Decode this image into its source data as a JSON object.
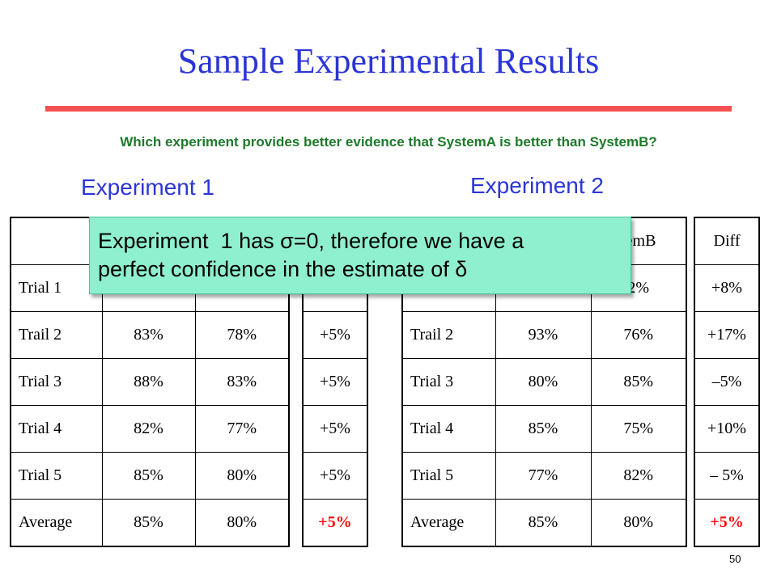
{
  "title": "Sample Experimental Results",
  "question": "Which experiment provides better evidence that SystemA is better than SystemB?",
  "experiment1": {
    "heading": "Experiment 1",
    "rows": [
      {
        "label": "Trial 1",
        "a": "",
        "b": ""
      },
      {
        "label": "Trail 2",
        "a": "83%",
        "b": "78%"
      },
      {
        "label": "Trial 3",
        "a": "88%",
        "b": "83%"
      },
      {
        "label": "Trial 4",
        "a": "82%",
        "b": "77%"
      },
      {
        "label": "Trial 5",
        "a": "85%",
        "b": "80%"
      },
      {
        "label": "Average",
        "a": "85%",
        "b": "80%"
      }
    ],
    "diff": [
      "+5%",
      "+5%",
      "+5%",
      "+5%",
      "+5%"
    ]
  },
  "experiment2": {
    "heading": "Experiment 2",
    "header_b": "temB",
    "rows": [
      {
        "label": "",
        "a": "",
        "b": "2%"
      },
      {
        "label": "Trail 2",
        "a": "93%",
        "b": "76%"
      },
      {
        "label": "Trial 3",
        "a": "80%",
        "b": "85%"
      },
      {
        "label": "Trial 4",
        "a": "85%",
        "b": "75%"
      },
      {
        "label": "Trial 5",
        "a": "77%",
        "b": "82%"
      },
      {
        "label": "Average",
        "a": "85%",
        "b": "80%"
      }
    ],
    "diff_header": "Diff",
    "diff": [
      "+8%",
      "+17%",
      "–5%",
      "+10%",
      "– 5%",
      "+5%"
    ]
  },
  "callout": {
    "line1": "Experiment  1 has σ=0, therefore we have a",
    "line2": "perfect confidence in the estimate of δ"
  },
  "colors": {
    "title": "#2b35d6",
    "question": "#1d7a2a",
    "rule": "#f25252",
    "callout": "#8ff0cf",
    "emphasis": "#ff0000"
  },
  "page_number": "50"
}
